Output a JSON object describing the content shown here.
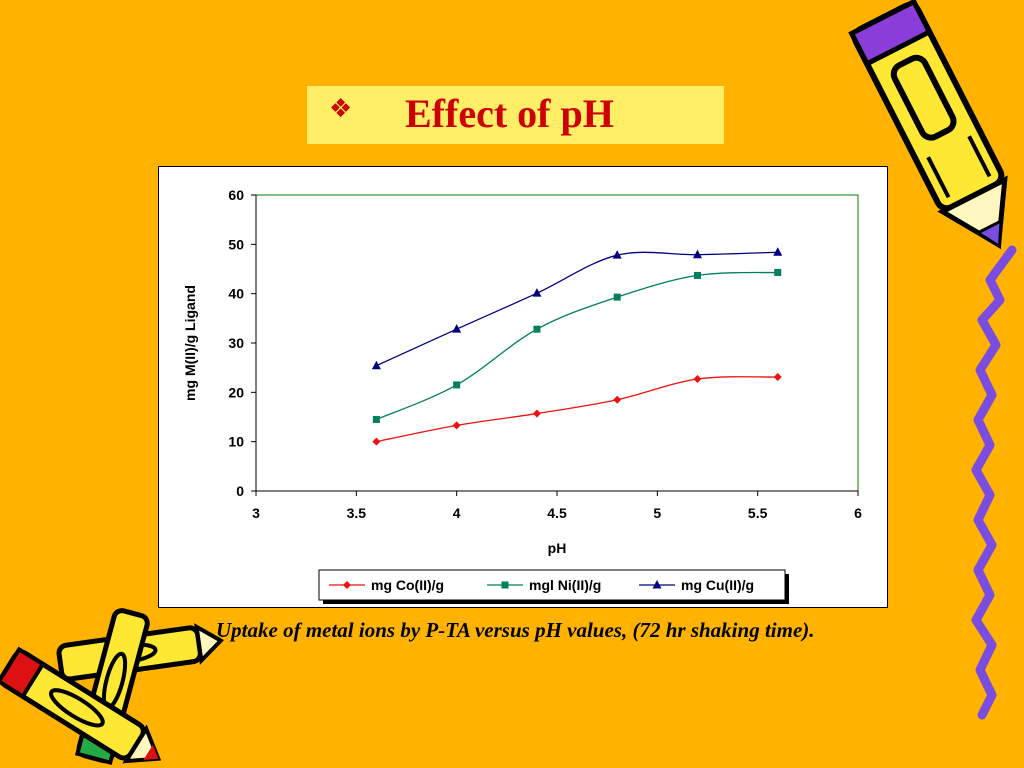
{
  "slide": {
    "bullet_icon": "diamond-bullet-icon",
    "bullet_glyph": "❖",
    "title": "Effect of pH",
    "caption": "Uptake of metal ions by P-TA versus pH values, (72 hr shaking time).",
    "background_color": "#FFB300",
    "title_box_color": "#FFEE66",
    "title_color": "#CC0000",
    "decorations": [
      "pencil-icon",
      "squiggle-line-icon",
      "crayons-icon"
    ]
  },
  "chart_data": {
    "type": "line",
    "title": "",
    "xlabel": "pH",
    "ylabel": "mg M(II)/g Ligand",
    "xlim": [
      3,
      6
    ],
    "ylim": [
      0,
      60
    ],
    "xticks": [
      "3",
      "3.5",
      "4",
      "4.5",
      "5",
      "5.5",
      "6"
    ],
    "yticks": [
      "0",
      "10",
      "20",
      "30",
      "40",
      "50",
      "60"
    ],
    "grid": false,
    "legend_position": "bottom",
    "series": [
      {
        "name": "mg Co(II)/g",
        "color": "#EE1111",
        "marker": "diamond",
        "x": [
          3.6,
          4.0,
          4.4,
          4.8,
          5.2,
          5.6
        ],
        "y": [
          10,
          13.3,
          15.7,
          18.5,
          22.7,
          23.1
        ]
      },
      {
        "name": "mgl Ni(II)/g",
        "color": "#007F5F",
        "marker": "square",
        "x": [
          3.6,
          4.0,
          4.4,
          4.8,
          5.2,
          5.6
        ],
        "y": [
          14.5,
          21.5,
          32.8,
          39.3,
          43.7,
          44.3
        ]
      },
      {
        "name": "mg Cu(II)/g",
        "color": "#000080",
        "marker": "triangle",
        "x": [
          3.6,
          4.0,
          4.4,
          4.8,
          5.2,
          5.6
        ],
        "y": [
          25.4,
          32.8,
          40.1,
          47.8,
          47.9,
          48.4
        ]
      }
    ]
  }
}
